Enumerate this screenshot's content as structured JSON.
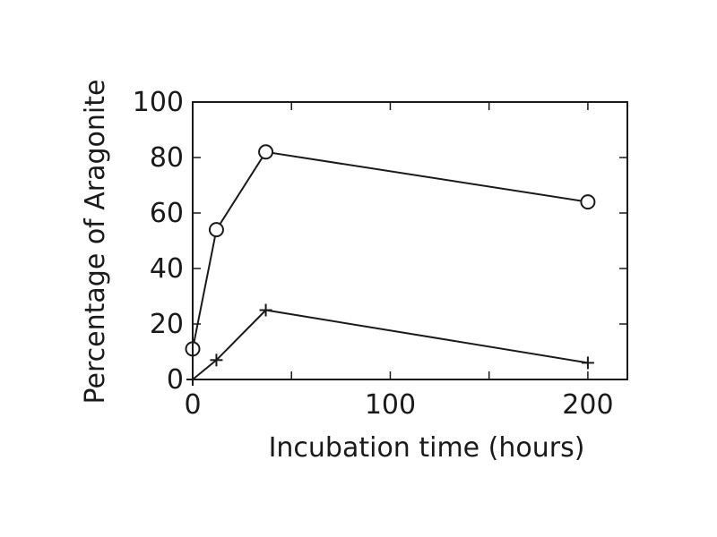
{
  "chart_data": {
    "type": "line",
    "title": "",
    "xlabel": "Incubation time (hours)",
    "ylabel": "Percentage of Aragonite",
    "xlim": [
      0,
      220
    ],
    "ylim": [
      0,
      100
    ],
    "x_ticks": [
      0,
      100,
      200
    ],
    "y_ticks": [
      0,
      20,
      40,
      60,
      80,
      100
    ],
    "x_minor_ticks": [
      50,
      150
    ],
    "grid": false,
    "legend": "none",
    "series": [
      {
        "marker": "circle",
        "x": [
          0,
          12,
          37,
          200
        ],
        "y": [
          11,
          54,
          82,
          64
        ]
      },
      {
        "marker": "plus",
        "x": [
          0,
          12,
          37,
          200
        ],
        "y": [
          0,
          7,
          25,
          6
        ]
      }
    ]
  }
}
